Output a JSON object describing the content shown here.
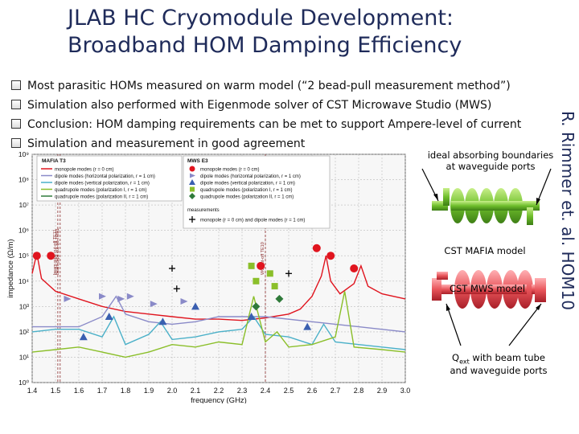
{
  "slide": {
    "title_line1": "JLAB HC Cryomodule Development:",
    "title_line2": "Broadband HOM Damping Efficiency",
    "bullets": [
      "Most parasitic HOMs measured on warm model (“2 bead-pull measurement method”)",
      "Simulation also performed with Eigenmode solver of CST Microwave Studio (MWS)",
      "Conclusion: HOM damping requirements can be met to support Ampere-level of current",
      "Simulation and measurement in good agreement"
    ],
    "credit": "R. Rimmer et. al. HOM10",
    "annotations": {
      "boundaries_line1": "ideal absorbing boundaries",
      "boundaries_line2": "at waveguide ports",
      "mafia_model": "CST MAFIA model",
      "mws_model": "CST MWS model",
      "qext_prefix": "Q",
      "qext_sub": "ext",
      "qext_suffix": " with beam tube",
      "qext_line2": "and waveguide ports"
    },
    "colors": {
      "title": "#1f2b5a",
      "cavity_green": "#7ac943",
      "cavity_red": "#e8545a"
    }
  },
  "chart_data": {
    "type": "line",
    "xlabel": "frequency (GHz)",
    "ylabel": "impedance (Ω/m)",
    "xlim": [
      1.4,
      3.0
    ],
    "ylim_log10": [
      0,
      9
    ],
    "x_ticks": [
      "1.4",
      "1.5",
      "1.6",
      "1.7",
      "1.8",
      "1.9",
      "2.0",
      "2.1",
      "2.2",
      "2.3",
      "2.4",
      "2.5",
      "2.6",
      "2.7",
      "2.8",
      "2.9",
      "3.0"
    ],
    "y_ticks": [
      "10⁰",
      "10¹",
      "10²",
      "10³",
      "10⁴",
      "10⁵",
      "10⁶",
      "10⁷",
      "10⁸",
      "10⁹"
    ],
    "legend_mafia_title": "MAFIA T3",
    "legend_mafia": [
      "monopole modes (r = 0 cm)",
      "dipole modes (horizontal polarization, r = 1 cm)",
      "dipole modes (vertical polarization, r = 1 cm)",
      "quadrupole modes (polarization I, r = 1 cm)",
      "quadrupole modes (polarization II, r = 1 cm)"
    ],
    "legend_mws_title": "MWS E3",
    "legend_mws": [
      "monopole modes (r = 0 cm)",
      "dipole modes (horizontal polarization, r = 1 cm)",
      "dipole modes (vertical polarization, r = 1 cm)",
      "quadrupole modes (polarization I, r = 1 cm)",
      "quadrupole modes (polarization II, r = 1 cm)"
    ],
    "legend_measurement_title": "measurements",
    "legend_measurement": "monopole (r = 0 cm) and dipole modes (r = 1 cm)",
    "series": [
      {
        "name": "monopole modes (r = 0 cm)",
        "color": "#e0141e",
        "curve": [
          [
            1.4,
            4.3
          ],
          [
            1.42,
            5.1
          ],
          [
            1.44,
            4.1
          ],
          [
            1.5,
            3.6
          ],
          [
            1.6,
            3.3
          ],
          [
            1.7,
            3.0
          ],
          [
            1.8,
            2.8
          ],
          [
            1.9,
            2.7
          ],
          [
            2.0,
            2.6
          ],
          [
            2.1,
            2.5
          ],
          [
            2.2,
            2.5
          ],
          [
            2.3,
            2.45
          ],
          [
            2.4,
            2.55
          ],
          [
            2.5,
            2.7
          ],
          [
            2.55,
            2.9
          ],
          [
            2.6,
            3.4
          ],
          [
            2.64,
            4.2
          ],
          [
            2.66,
            5.0
          ],
          [
            2.68,
            4.0
          ],
          [
            2.72,
            3.5
          ],
          [
            2.78,
            3.9
          ],
          [
            2.81,
            4.6
          ],
          [
            2.84,
            3.8
          ],
          [
            2.9,
            3.5
          ],
          [
            3.0,
            3.3
          ]
        ],
        "points": [
          [
            1.42,
            5.0
          ],
          [
            1.48,
            5.0
          ],
          [
            2.38,
            4.6
          ],
          [
            2.62,
            5.3
          ],
          [
            2.68,
            5.0
          ],
          [
            2.78,
            4.5
          ]
        ]
      },
      {
        "name": "dipole modes (horizontal polarization, r = 1 cm)",
        "color": "#8a8ac8",
        "curve": [
          [
            1.4,
            2.2
          ],
          [
            1.6,
            2.2
          ],
          [
            1.7,
            2.6
          ],
          [
            1.76,
            3.4
          ],
          [
            1.8,
            2.7
          ],
          [
            1.9,
            2.4
          ],
          [
            2.0,
            2.3
          ],
          [
            2.1,
            2.4
          ],
          [
            2.2,
            2.6
          ],
          [
            2.4,
            2.6
          ],
          [
            2.6,
            2.4
          ],
          [
            2.8,
            2.2
          ],
          [
            3.0,
            2.0
          ]
        ],
        "points": [
          [
            1.55,
            3.3
          ],
          [
            1.7,
            3.4
          ],
          [
            1.78,
            3.3
          ],
          [
            1.82,
            3.4
          ],
          [
            1.92,
            3.1
          ],
          [
            2.05,
            3.2
          ]
        ]
      },
      {
        "name": "dipole modes (vertical polarization, r = 1 cm)",
        "color": "#4ab0c8",
        "curve": [
          [
            1.4,
            2.0
          ],
          [
            1.5,
            2.1
          ],
          [
            1.6,
            2.1
          ],
          [
            1.7,
            1.8
          ],
          [
            1.75,
            2.6
          ],
          [
            1.8,
            1.5
          ],
          [
            1.9,
            1.9
          ],
          [
            1.95,
            2.4
          ],
          [
            2.0,
            1.7
          ],
          [
            2.1,
            1.8
          ],
          [
            2.2,
            2.0
          ],
          [
            2.3,
            2.1
          ],
          [
            2.35,
            2.6
          ],
          [
            2.4,
            1.9
          ],
          [
            2.5,
            1.8
          ],
          [
            2.6,
            1.5
          ],
          [
            2.65,
            2.3
          ],
          [
            2.7,
            1.6
          ],
          [
            2.8,
            1.5
          ],
          [
            2.9,
            1.4
          ],
          [
            3.0,
            1.3
          ]
        ],
        "points": [
          [
            1.62,
            1.8
          ],
          [
            1.73,
            2.6
          ],
          [
            1.96,
            2.4
          ],
          [
            2.1,
            3.0
          ],
          [
            2.34,
            2.6
          ],
          [
            2.58,
            2.2
          ]
        ]
      },
      {
        "name": "quadrupole modes (polarization I, r = 1 cm)",
        "color": "#8bbf2a",
        "curve": [
          [
            1.4,
            1.2
          ],
          [
            1.5,
            1.3
          ],
          [
            1.6,
            1.4
          ],
          [
            1.7,
            1.2
          ],
          [
            1.8,
            1.0
          ],
          [
            1.9,
            1.2
          ],
          [
            2.0,
            1.5
          ],
          [
            2.1,
            1.4
          ],
          [
            2.2,
            1.6
          ],
          [
            2.3,
            1.5
          ],
          [
            2.35,
            3.4
          ],
          [
            2.4,
            1.6
          ],
          [
            2.45,
            2.0
          ],
          [
            2.5,
            1.4
          ],
          [
            2.6,
            1.5
          ],
          [
            2.7,
            1.8
          ],
          [
            2.74,
            3.6
          ],
          [
            2.78,
            1.4
          ],
          [
            2.9,
            1.3
          ],
          [
            3.0,
            1.2
          ]
        ],
        "points": [
          [
            2.34,
            4.6
          ],
          [
            2.36,
            4.0
          ],
          [
            2.42,
            4.3
          ],
          [
            2.44,
            3.8
          ]
        ]
      },
      {
        "name": "quadrupole modes (polarization II, r = 1 cm)",
        "color": "#2f7a3a",
        "curve": [],
        "points": [
          [
            2.36,
            3.0
          ],
          [
            2.46,
            3.3
          ]
        ]
      },
      {
        "name": "monopole (r = 0 cm) and dipole modes (r = 1 cm)",
        "color": "#000",
        "curve": [],
        "points": [
          [
            2.0,
            4.5
          ],
          [
            2.02,
            3.7
          ],
          [
            2.5,
            4.3
          ]
        ]
      }
    ],
    "vertical_markers": [
      {
        "x": 1.51,
        "label": "beam pipe cut-off TE11"
      },
      {
        "x": 1.52,
        "label": "beam pipe cut-off TM01"
      },
      {
        "x": 2.4,
        "label": "WG cut-off TE10"
      }
    ]
  }
}
